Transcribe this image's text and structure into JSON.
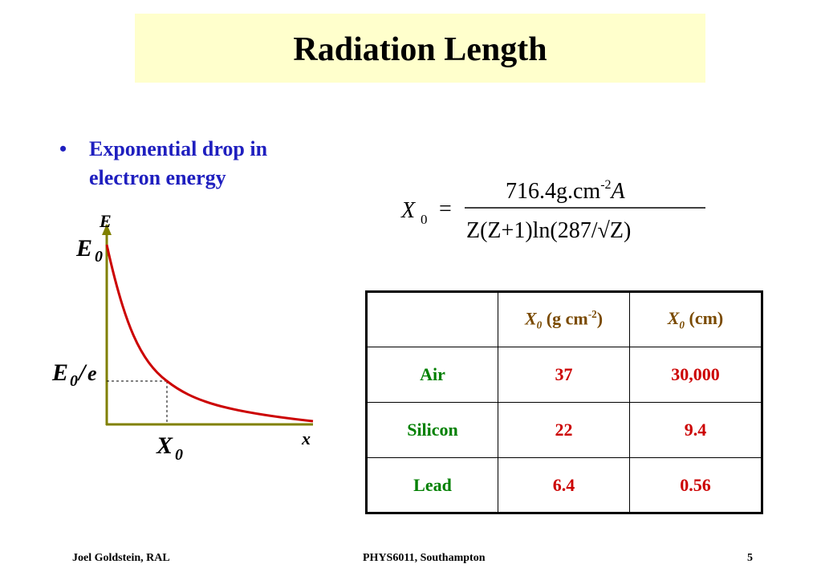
{
  "slide": {
    "title": "Radiation Length",
    "bullets": [
      {
        "marker": "•",
        "text": "Exponential drop in electron energy"
      }
    ]
  },
  "formula": {
    "lhs": "X",
    "lhs_subscript": "0",
    "equals": "=",
    "numerator_value": "716.4g.cm",
    "numerator_exponent": "-2",
    "numerator_var": "A",
    "denominator": "Z(Z+1)ln(287/√Z)"
  },
  "graph": {
    "y_axis_label": "E",
    "x_axis_label": "x",
    "initial_label": "E",
    "initial_subscript": "0",
    "mid_label": "E",
    "mid_subscript": "0",
    "mid_divider": "/",
    "mid_e": "e",
    "x0_label": "X",
    "x0_subscript": "0",
    "axis_color": "#808000",
    "curve_color": "#cc0000"
  },
  "table": {
    "headers": [
      {
        "symbol": "X",
        "sub": "0",
        "unit_pre": " (g cm",
        "unit_sup": "-2",
        "unit_post": ")"
      },
      {
        "symbol": "X",
        "sub": "0",
        "unit_pre": " (cm)",
        "unit_sup": "",
        "unit_post": ""
      }
    ],
    "rows": [
      {
        "material": "Air",
        "x0_gcm2": "37",
        "x0_cm": "30,000"
      },
      {
        "material": "Silicon",
        "x0_gcm2": "22",
        "x0_cm": "9.4"
      },
      {
        "material": "Lead",
        "x0_gcm2": "6.4",
        "x0_cm": "0.56"
      }
    ],
    "colors": {
      "header": "#7a4a00",
      "material": "#008000",
      "value": "#cc0000"
    }
  },
  "footer": {
    "author": "Joel Goldstein, RAL",
    "course": "PHYS6011, Southampton",
    "page": "5"
  }
}
